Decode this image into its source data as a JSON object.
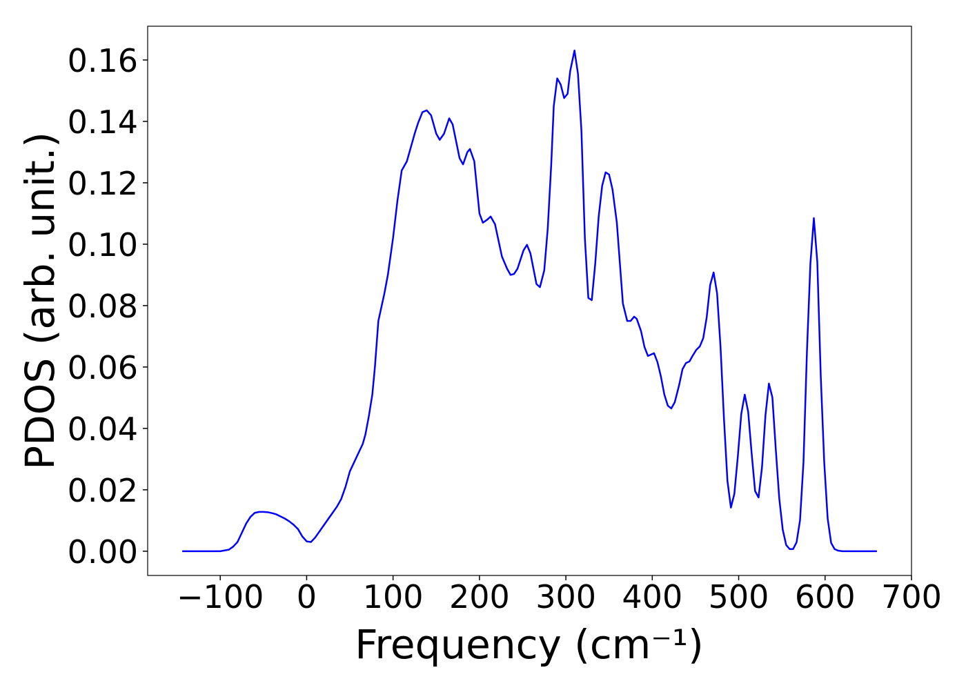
{
  "chart_data": {
    "type": "line",
    "xlabel": "Frequency (cm⁻¹)",
    "ylabel": "PDOS (arb. unit.)",
    "xlim": [
      -184,
      700
    ],
    "ylim": [
      -0.0079,
      0.171
    ],
    "xticks": [
      {
        "value": -100,
        "label": "−100"
      },
      0,
      100,
      200,
      300,
      400,
      500,
      600,
      700
    ],
    "yticks": [
      {
        "value": 0,
        "label": "0.00"
      },
      {
        "value": 0.02,
        "label": "0.02"
      },
      {
        "value": 0.04,
        "label": "0.04"
      },
      {
        "value": 0.06,
        "label": "0.06"
      },
      {
        "value": 0.08,
        "label": "0.08"
      },
      {
        "value": 0.1,
        "label": "0.10"
      },
      {
        "value": 0.12,
        "label": "0.12"
      },
      {
        "value": 0.14,
        "label": "0.14"
      },
      {
        "value": 0.16,
        "label": "0.16"
      }
    ],
    "series": [
      {
        "color": "#0000ff",
        "x": [
          -144,
          -120,
          -100,
          -90,
          -85,
          -80,
          -75,
          -70,
          -65,
          -60,
          -55,
          -50,
          -45,
          -40,
          -35,
          -30,
          -25,
          -20,
          -15,
          -10,
          -5,
          0,
          5,
          10,
          15,
          20,
          25,
          30,
          35,
          40,
          45,
          50,
          55,
          60,
          65,
          68,
          72,
          76,
          79,
          83,
          90,
          94,
          100,
          105,
          110,
          116,
          121,
          125,
          129,
          134,
          139,
          144,
          150,
          154,
          159,
          165,
          169,
          177,
          181,
          186,
          189,
          194,
          200,
          204,
          209,
          213,
          218,
          226,
          232,
          236,
          240,
          244,
          251,
          255,
          259,
          266,
          270,
          275,
          279,
          283,
          286,
          290,
          294,
          298,
          302,
          305,
          310,
          314,
          318,
          322,
          326,
          330,
          334,
          338,
          342,
          346,
          350,
          354,
          359,
          366,
          371,
          375,
          379,
          382,
          387,
          391,
          395,
          402,
          406,
          410,
          414,
          418,
          422,
          426,
          431,
          435,
          439,
          443,
          447,
          451,
          455,
          459,
          463,
          467,
          471,
          475,
          479,
          483,
          487,
          491,
          495,
          499,
          503,
          507,
          511,
          515,
          519,
          523,
          527,
          531,
          535,
          539,
          543,
          547,
          551,
          555,
          559,
          563,
          567,
          571,
          575,
          579,
          583,
          587,
          591,
          595,
          599,
          603,
          607,
          611,
          615,
          620,
          640,
          660
        ],
        "values": [
          0,
          0,
          0,
          0.0005,
          0.0015,
          0.003,
          0.006,
          0.009,
          0.0112,
          0.0125,
          0.0128,
          0.0128,
          0.0127,
          0.0124,
          0.012,
          0.0113,
          0.0106,
          0.0097,
          0.0086,
          0.0072,
          0.0048,
          0.0032,
          0.003,
          0.0045,
          0.0065,
          0.0085,
          0.0105,
          0.0125,
          0.0145,
          0.017,
          0.021,
          0.026,
          0.029,
          0.032,
          0.035,
          0.038,
          0.044,
          0.051,
          0.06,
          0.075,
          0.084,
          0.09,
          0.102,
          0.114,
          0.124,
          0.127,
          0.132,
          0.136,
          0.1395,
          0.143,
          0.1436,
          0.142,
          0.136,
          0.134,
          0.136,
          0.141,
          0.139,
          0.128,
          0.126,
          0.13,
          0.131,
          0.127,
          0.11,
          0.107,
          0.108,
          0.109,
          0.1065,
          0.096,
          0.092,
          0.09,
          0.0903,
          0.092,
          0.098,
          0.0998,
          0.097,
          0.087,
          0.086,
          0.0915,
          0.105,
          0.1256,
          0.145,
          0.154,
          0.152,
          0.1476,
          0.149,
          0.1564,
          0.1631,
          0.1555,
          0.137,
          0.102,
          0.0825,
          0.0818,
          0.0937,
          0.109,
          0.119,
          0.1234,
          0.1227,
          0.1178,
          0.107,
          0.0807,
          0.075,
          0.075,
          0.0764,
          0.0757,
          0.0717,
          0.0665,
          0.0636,
          0.0645,
          0.0616,
          0.0569,
          0.051,
          0.0474,
          0.0465,
          0.0485,
          0.054,
          0.0593,
          0.0613,
          0.0618,
          0.0638,
          0.0656,
          0.0667,
          0.0694,
          0.0762,
          0.0867,
          0.0908,
          0.084,
          0.0665,
          0.043,
          0.0229,
          0.0142,
          0.0187,
          0.0308,
          0.0447,
          0.051,
          0.0454,
          0.0319,
          0.0196,
          0.0175,
          0.0274,
          0.0443,
          0.0546,
          0.0501,
          0.033,
          0.0171,
          0.007,
          0.002,
          0.0007,
          0.0007,
          0.0029,
          0.0101,
          0.029,
          0.065,
          0.0937,
          0.1085,
          0.0942,
          0.057,
          0.029,
          0.0106,
          0.0027,
          0.0007,
          0.0002,
          0,
          0,
          0
        ]
      }
    ]
  }
}
